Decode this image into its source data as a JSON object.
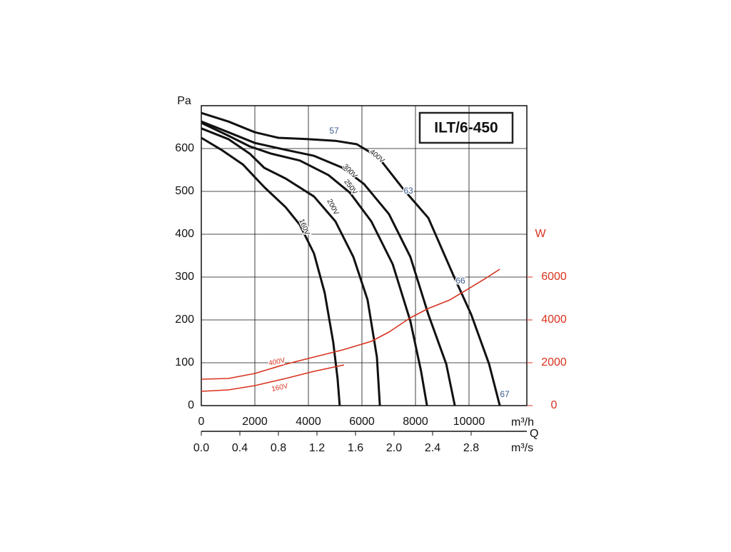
{
  "chart_data": {
    "type": "line",
    "title": "ILT/6-450",
    "y_label": "Pa",
    "y2_label": "W",
    "x_label": "m³/h",
    "x_quantity": "Q",
    "x2_label": "m³/s",
    "xlim": [
      0,
      12160
    ],
    "xticks": [
      0,
      2000,
      4000,
      6000,
      8000,
      10000
    ],
    "x2lim": [
      0,
      3.378
    ],
    "x2ticks": [
      {
        "value": 0,
        "label": "0.0"
      },
      0.4,
      0.8,
      1.2,
      1.6,
      {
        "value": 2,
        "label": "2.0"
      },
      2.4,
      2.8
    ],
    "ylim": [
      0,
      700
    ],
    "yticks": [
      0,
      100,
      200,
      300,
      400,
      500,
      600
    ],
    "y2lim": [
      0,
      14000
    ],
    "y2ticks": [
      0,
      2000,
      4000,
      6000
    ],
    "grid": true,
    "series": [
      {
        "name": "400V",
        "color": "#111111",
        "x": [
          0,
          1013,
          2000,
          2880,
          3950,
          5010,
          5810,
          6610,
          7550,
          8480,
          9410,
          10080,
          10750,
          11150
        ],
        "values": [
          683,
          663,
          638,
          625,
          622,
          618,
          610,
          580,
          505,
          438,
          305,
          213,
          97,
          0
        ]
      },
      {
        "name": "300V",
        "color": "#111111",
        "x": [
          0,
          1010,
          2000,
          3150,
          4210,
          5280,
          6080,
          7010,
          7810,
          8480,
          9150,
          9470
        ],
        "values": [
          663,
          638,
          613,
          597,
          583,
          555,
          517,
          447,
          347,
          213,
          97,
          0
        ]
      },
      {
        "name": "250V",
        "color": "#111111",
        "x": [
          0,
          1010,
          1810,
          2610,
          3680,
          4750,
          5550,
          6350,
          7150,
          7810,
          8210,
          8430
        ],
        "values": [
          660,
          630,
          605,
          588,
          572,
          538,
          497,
          430,
          330,
          197,
          80,
          0
        ]
      },
      {
        "name": "200V",
        "color": "#111111",
        "x": [
          0,
          1010,
          1810,
          2350,
          3150,
          4210,
          5010,
          5680,
          6210,
          6560,
          6670
        ],
        "values": [
          647,
          622,
          588,
          555,
          530,
          488,
          430,
          347,
          247,
          113,
          0
        ]
      },
      {
        "name": "160V",
        "color": "#111111",
        "x": [
          0,
          750,
          1550,
          2350,
          3150,
          3680,
          4210,
          4610,
          4930,
          5090,
          5170
        ],
        "values": [
          625,
          597,
          563,
          510,
          463,
          422,
          355,
          263,
          147,
          63,
          0
        ]
      },
      {
        "name": "400V",
        "color": "#d9321f",
        "axis": "y2",
        "x": [
          0,
          1010,
          2000,
          3150,
          4210,
          5280,
          6350,
          7010,
          7810,
          8480,
          9280,
          9950,
          10610,
          11150
        ],
        "values": [
          1233,
          1267,
          1500,
          1933,
          2267,
          2600,
          3000,
          3433,
          4100,
          4533,
          4933,
          5433,
          5933,
          6367
        ]
      },
      {
        "name": "160V",
        "color": "#d9321f",
        "axis": "y2",
        "x": [
          0,
          1010,
          2000,
          3150,
          4210,
          5330
        ],
        "values": [
          667,
          733,
          933,
          1267,
          1600,
          1900
        ]
      }
    ],
    "annotations": [
      "57",
      "63",
      "66",
      "67"
    ]
  }
}
